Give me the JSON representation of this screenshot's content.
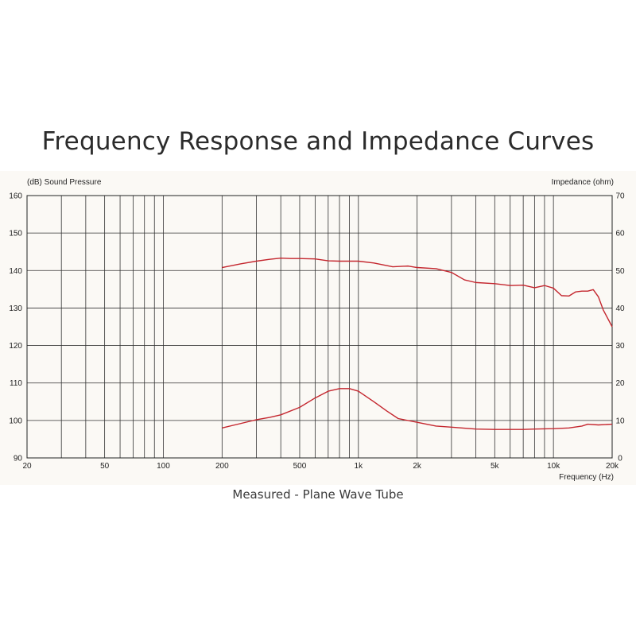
{
  "title": "Frequency Response and Impedance Curves",
  "caption": "Measured - Plane Wave Tube",
  "chart_data": {
    "type": "line",
    "x_scale": "log",
    "xlim": [
      20,
      20000
    ],
    "ylim_left": [
      90,
      160
    ],
    "ylim_right": [
      0,
      70
    ],
    "left_axis_label": "(dB) Sound Pressure",
    "right_axis_label": "Impedance (ohm)",
    "x_axis_label": "Frequency (Hz)",
    "x_ticks": [
      {
        "value": 20,
        "label": "20"
      },
      {
        "value": 50,
        "label": "50"
      },
      {
        "value": 100,
        "label": "100"
      },
      {
        "value": 200,
        "label": "200"
      },
      {
        "value": 500,
        "label": "500"
      },
      {
        "value": 1000,
        "label": "1k"
      },
      {
        "value": 2000,
        "label": "2k"
      },
      {
        "value": 5000,
        "label": "5k"
      },
      {
        "value": 10000,
        "label": "10k"
      },
      {
        "value": 20000,
        "label": "20k"
      }
    ],
    "y_ticks_left": [
      160,
      150,
      140,
      130,
      120,
      110,
      100,
      90
    ],
    "y_ticks_right": [
      70,
      60,
      50,
      40,
      30,
      20,
      10,
      0
    ],
    "grid": true,
    "line_color": "#c4262e",
    "series": [
      {
        "axis": "left",
        "x": [
          200,
          250,
          300,
          350,
          400,
          450,
          500,
          600,
          700,
          800,
          1000,
          1200,
          1500,
          1800,
          2000,
          2500,
          3000,
          3500,
          4000,
          5000,
          6000,
          7000,
          8000,
          9000,
          10000,
          11000,
          12000,
          13000,
          14000,
          15000,
          16000,
          17000,
          18000,
          20000
        ],
        "y": [
          140.8,
          141.8,
          142.5,
          143.0,
          143.3,
          143.2,
          143.2,
          143.1,
          142.6,
          142.5,
          142.5,
          142.0,
          141.0,
          141.2,
          140.8,
          140.5,
          139.5,
          137.5,
          136.8,
          136.5,
          136.0,
          136.1,
          135.4,
          136.0,
          135.3,
          133.3,
          133.2,
          134.3,
          134.5,
          134.5,
          134.9,
          133.0,
          129.5,
          125.0
        ]
      },
      {
        "axis": "right",
        "x": [
          200,
          250,
          300,
          350,
          400,
          500,
          600,
          700,
          800,
          900,
          1000,
          1200,
          1400,
          1600,
          2000,
          2500,
          3000,
          4000,
          5000,
          6000,
          7000,
          8000,
          10000,
          12000,
          14000,
          15000,
          17000,
          20000
        ],
        "y": [
          8.0,
          9.2,
          10.2,
          10.8,
          11.5,
          13.5,
          16.0,
          17.8,
          18.5,
          18.5,
          17.8,
          15.0,
          12.5,
          10.5,
          9.5,
          8.5,
          8.2,
          7.7,
          7.6,
          7.6,
          7.6,
          7.7,
          7.8,
          8.0,
          8.5,
          9.0,
          8.8,
          9.0
        ]
      }
    ]
  }
}
